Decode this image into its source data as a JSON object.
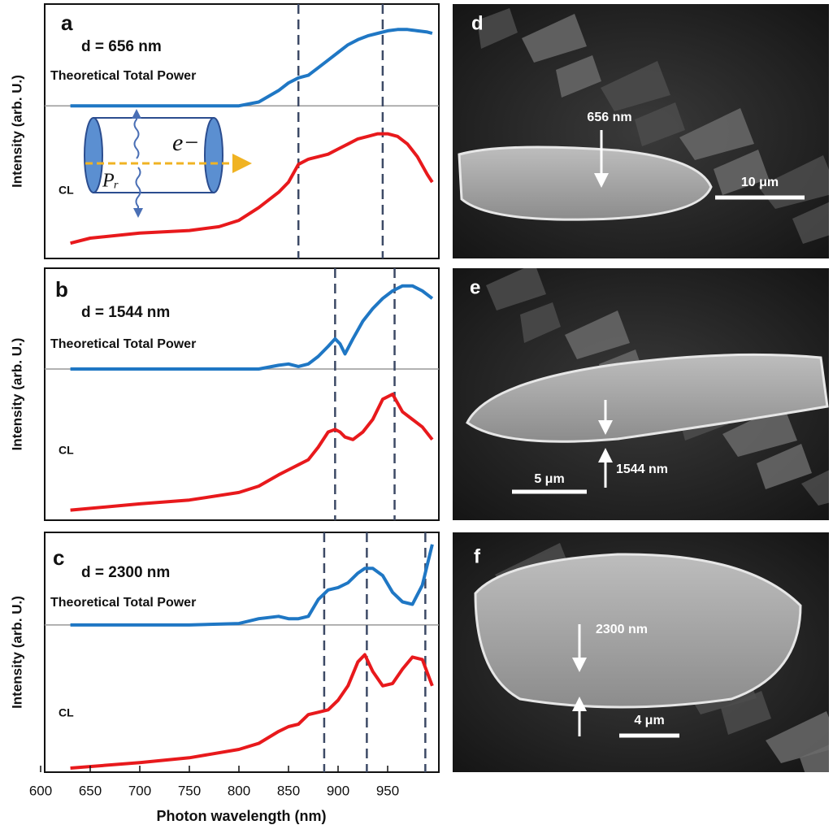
{
  "chart_data": [
    {
      "type": "line",
      "label": "a",
      "subtitle": "d = 656 nm",
      "ylabel": "Intensity (arb. U.)",
      "xlim": [
        600,
        1000
      ],
      "ylim": [
        0,
        1
      ],
      "baseline": 0.6,
      "vlines": [
        860,
        945
      ],
      "inset_labels": [
        "e−",
        "Pᵣ"
      ],
      "x": [
        630,
        650,
        700,
        750,
        780,
        800,
        820,
        840,
        850,
        860,
        870,
        880,
        890,
        900,
        910,
        920,
        930,
        940,
        950,
        960,
        970,
        980,
        990,
        995
      ],
      "series": [
        {
          "name": "Theoretical Total Power",
          "color": "#1f77c4",
          "values": [
            0.6,
            0.6,
            0.6,
            0.6,
            0.6,
            0.6,
            0.615,
            0.66,
            0.69,
            0.71,
            0.72,
            0.75,
            0.78,
            0.81,
            0.84,
            0.86,
            0.875,
            0.885,
            0.895,
            0.9,
            0.9,
            0.895,
            0.89,
            0.885
          ]
        },
        {
          "name": "CL",
          "color": "#e8191c",
          "values": [
            0.06,
            0.08,
            0.1,
            0.11,
            0.125,
            0.15,
            0.2,
            0.26,
            0.3,
            0.37,
            0.39,
            0.4,
            0.41,
            0.43,
            0.45,
            0.47,
            0.48,
            0.49,
            0.49,
            0.48,
            0.45,
            0.4,
            0.33,
            0.3
          ]
        }
      ]
    },
    {
      "type": "line",
      "label": "b",
      "subtitle": "d = 1544 nm",
      "ylabel": "Intensity (arb. U.)",
      "xlim": [
        600,
        1000
      ],
      "ylim": [
        0,
        1
      ],
      "baseline": 0.6,
      "vlines": [
        897,
        957
      ],
      "x": [
        630,
        700,
        750,
        800,
        820,
        840,
        850,
        860,
        870,
        880,
        890,
        897,
        902,
        907,
        915,
        925,
        935,
        945,
        955,
        965,
        975,
        985,
        995
      ],
      "series": [
        {
          "name": "Theoretical Total Power",
          "color": "#1f77c4",
          "values": [
            0.6,
            0.6,
            0.6,
            0.6,
            0.6,
            0.615,
            0.62,
            0.61,
            0.62,
            0.65,
            0.69,
            0.72,
            0.7,
            0.66,
            0.72,
            0.79,
            0.84,
            0.88,
            0.91,
            0.93,
            0.93,
            0.91,
            0.88
          ]
        },
        {
          "name": "CL",
          "color": "#e8191c",
          "values": [
            0.04,
            0.065,
            0.08,
            0.11,
            0.135,
            0.18,
            0.2,
            0.22,
            0.24,
            0.29,
            0.35,
            0.36,
            0.35,
            0.33,
            0.32,
            0.35,
            0.4,
            0.48,
            0.5,
            0.43,
            0.4,
            0.37,
            0.32
          ]
        }
      ]
    },
    {
      "type": "line",
      "label": "c",
      "subtitle": "d = 2300 nm",
      "ylabel": "Intensity (arb. U.)",
      "xlabel": "Photon wavelength (nm)",
      "xlim": [
        600,
        1000
      ],
      "ylim": [
        0,
        1
      ],
      "baseline": 0.614,
      "vlines": [
        886,
        929,
        988
      ],
      "xticks": [
        600,
        650,
        700,
        750,
        800,
        850,
        900,
        950
      ],
      "x": [
        630,
        700,
        750,
        800,
        820,
        840,
        850,
        860,
        870,
        880,
        890,
        900,
        910,
        920,
        927,
        935,
        945,
        955,
        965,
        975,
        985,
        995
      ],
      "series": [
        {
          "name": "Theoretical Total Power",
          "color": "#1f77c4",
          "values": [
            0.614,
            0.614,
            0.614,
            0.62,
            0.64,
            0.65,
            0.64,
            0.64,
            0.65,
            0.72,
            0.76,
            0.77,
            0.79,
            0.83,
            0.85,
            0.85,
            0.82,
            0.75,
            0.71,
            0.7,
            0.78,
            0.95
          ]
        },
        {
          "name": "CL",
          "color": "#e8191c",
          "values": [
            0.017,
            0.04,
            0.06,
            0.095,
            0.12,
            0.17,
            0.19,
            0.2,
            0.24,
            0.25,
            0.26,
            0.3,
            0.36,
            0.46,
            0.49,
            0.42,
            0.36,
            0.37,
            0.43,
            0.48,
            0.47,
            0.36
          ]
        }
      ]
    }
  ],
  "images": [
    {
      "label": "d",
      "thickness": "656 nm",
      "scale_bar": "10 μm"
    },
    {
      "label": "e",
      "thickness": "1544 nm",
      "scale_bar": "5 μm"
    },
    {
      "label": "f",
      "thickness": "2300 nm",
      "scale_bar": "4 μm"
    }
  ]
}
